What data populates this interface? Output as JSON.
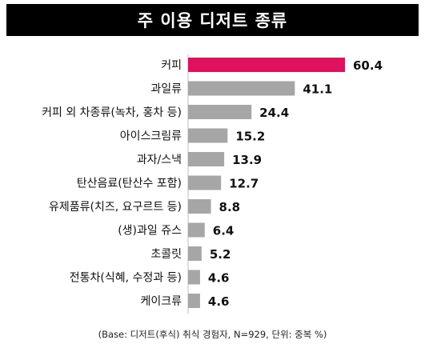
{
  "title": "주 이용 디저트 종류",
  "footnote": "(Base: 디저트(후식) 취식 경험자, N=929, 단위: 중복 %)",
  "colors": {
    "highlight": "#e0115f",
    "bar": "#a6a6a6",
    "title_bg": "#000000"
  },
  "chart_data": {
    "type": "bar",
    "orientation": "horizontal",
    "title": "주 이용 디저트 종류",
    "categories": [
      "커피",
      "과일류",
      "커피 외 차종류(녹차, 홍차 등)",
      "아이스크림류",
      "과자/스낵",
      "탄산음료(탄산수 포함)",
      "유제품류(치즈, 요구르트 등)",
      "(생)과일 쥬스",
      "초콜릿",
      "전통차(식혜, 수정과 등)",
      "케이크류"
    ],
    "values": [
      60.4,
      41.1,
      24.4,
      15.2,
      13.9,
      12.7,
      8.8,
      6.4,
      5.2,
      4.6,
      4.6
    ],
    "value_labels": [
      "60.4",
      "41.1",
      "24.4",
      "15.2",
      "13.9",
      "12.7",
      "8.8",
      "6.4",
      "5.2",
      "4.6",
      "4.6"
    ],
    "highlight_index": 0,
    "xlim": [
      0,
      60.4
    ],
    "grid": false,
    "legend": "none"
  }
}
